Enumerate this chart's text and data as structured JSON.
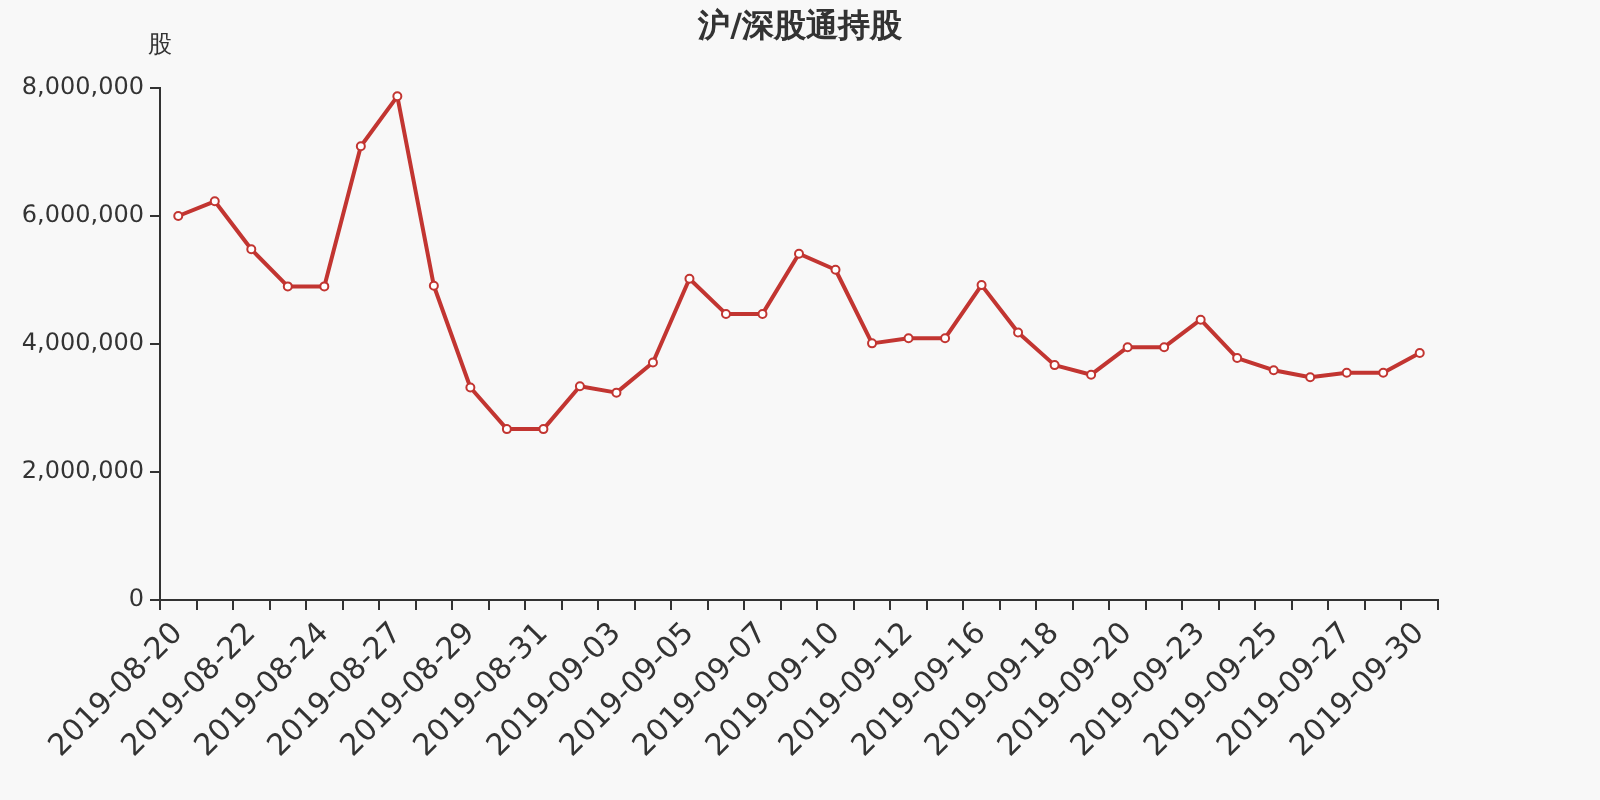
{
  "chart_data": {
    "type": "line",
    "title": "沪/深股通持股",
    "ylabel": "股",
    "categories": [
      "2019-08-20",
      null,
      "2019-08-22",
      null,
      "2019-08-24",
      null,
      "2019-08-27",
      null,
      "2019-08-29",
      null,
      "2019-08-31",
      null,
      "2019-09-03",
      null,
      "2019-09-05",
      null,
      "2019-09-07",
      null,
      "2019-09-10",
      null,
      "2019-09-12",
      null,
      "2019-09-16",
      null,
      "2019-09-18",
      null,
      "2019-09-20",
      null,
      "2019-09-23",
      null,
      "2019-09-25",
      null,
      "2019-09-27",
      null,
      "2019-09-30"
    ],
    "series": [
      {
        "color": "#c23531",
        "values": [
          6000000,
          6230000,
          5480000,
          4900000,
          4900000,
          7090000,
          7870000,
          4910000,
          3320000,
          2670000,
          2670000,
          3340000,
          3240000,
          3710000,
          5020000,
          4470000,
          4470000,
          5410000,
          5160000,
          4010000,
          4090000,
          4090000,
          4920000,
          4180000,
          3670000,
          3520000,
          3950000,
          3950000,
          4380000,
          3780000,
          3590000,
          3480000,
          3550000,
          3550000,
          3860000
        ]
      }
    ],
    "ylim": [
      0,
      8000000
    ],
    "yticks": [
      0,
      {
        "value": 2000000,
        "label": "2,000,000"
      },
      {
        "value": 4000000,
        "label": "4,000,000"
      },
      {
        "value": 6000000,
        "label": "6,000,000"
      },
      {
        "value": 8000000,
        "label": "8,000,000"
      }
    ],
    "grid": false,
    "legend": false,
    "marker": "circle",
    "line_style": "solid"
  }
}
